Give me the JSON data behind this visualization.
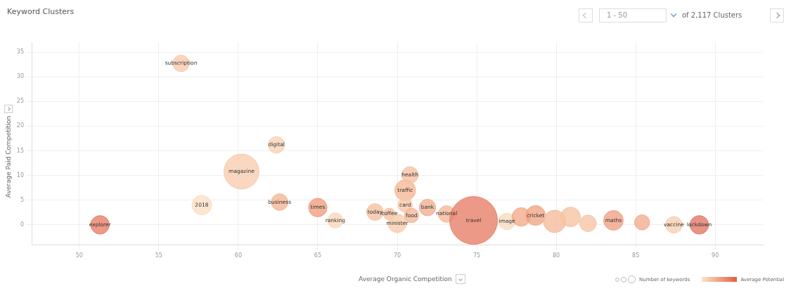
{
  "chart_data": {
    "type": "bubble",
    "title": "Keyword Clusters",
    "xlabel": "Average Organic Competition",
    "ylabel": "Average Paid Competition",
    "clabel": "Average Potential",
    "x": [
      51.3,
      56.4,
      57.7,
      60.2,
      62.4,
      62.6,
      65.0,
      66.1,
      68.6,
      69.5,
      70.0,
      70.5,
      70.5,
      70.8,
      70.9,
      71.9,
      73.1,
      74.8,
      76.9,
      77.8,
      78.7,
      79.9,
      80.9,
      82.0,
      83.6,
      85.4,
      87.4,
      89.0
    ],
    "values": [
      0,
      32.7,
      4.0,
      10.8,
      16.2,
      4.6,
      3.5,
      0.9,
      2.6,
      2.2,
      0.3,
      7.0,
      4.0,
      10.1,
      1.9,
      3.5,
      2.2,
      0.9,
      0.7,
      1.6,
      1.9,
      0.7,
      1.6,
      0.3,
      0.9,
      0.5,
      0,
      0
    ],
    "sizes": [
      0.15,
      0.12,
      0.17,
      0.54,
      0.12,
      0.12,
      0.15,
      0.1,
      0.12,
      0.06,
      0.15,
      0.19,
      0.09,
      0.12,
      0.09,
      0.12,
      0.12,
      1,
      0.12,
      0.15,
      0.17,
      0.22,
      0.17,
      0.12,
      0.17,
      0.1,
      0.12,
      0.15
    ],
    "colors": [
      "#e8806a",
      "#f9cbac",
      "#fbe0c6",
      "#f9cdb0",
      "#f9d3b6",
      "#f5b693",
      "#f0a080",
      "#f9d8bc",
      "#f5c0a0",
      "#f5c0a0",
      "#f7cdae",
      "#f5b896",
      "#f7c8a8",
      "#f6c2a2",
      "#f4b898",
      "#f2b092",
      "#f4ba9a",
      "#e8806a",
      "#f9dcc0",
      "#f2ad8c",
      "#f0a686",
      "#f4bc9c",
      "#f5c4a4",
      "#f6c6a6",
      "#f0a284",
      "#f2ae90",
      "#f7cfb2",
      "#e27868"
    ],
    "xlim": [
      47,
      93
    ],
    "xticks": [
      50,
      55,
      60,
      65,
      70,
      75,
      80,
      85,
      90
    ],
    "ylim": [
      -4,
      37
    ],
    "yticks": [
      0,
      5,
      10,
      15,
      20,
      25,
      30,
      35
    ],
    "grid": true,
    "annotations": [
      "1 - 50",
      "of 2,117 Clusters",
      "Number of keywords",
      {
        "text": "explorer",
        "x": 51.3,
        "y": 0
      },
      {
        "text": "subscription",
        "x": 56.4,
        "y": 32.7
      },
      {
        "text": "2018",
        "x": 57.7,
        "y": 4.0
      },
      {
        "text": "magazine",
        "x": 60.2,
        "y": 10.8
      },
      {
        "text": "digital",
        "x": 62.4,
        "y": 16.2
      },
      {
        "text": "business",
        "x": 62.6,
        "y": 4.6
      },
      {
        "text": "times",
        "x": 65.0,
        "y": 3.5
      },
      {
        "text": "ranking",
        "x": 66.1,
        "y": 0.9
      },
      {
        "text": "today",
        "x": 68.6,
        "y": 2.6
      },
      {
        "text": "coffee",
        "x": 69.5,
        "y": 2.2
      },
      {
        "text": "minister",
        "x": 70.0,
        "y": 0.3
      },
      {
        "text": "traffic",
        "x": 70.5,
        "y": 7.0
      },
      {
        "text": "card",
        "x": 70.5,
        "y": 4.0
      },
      {
        "text": "health",
        "x": 70.8,
        "y": 10.1
      },
      {
        "text": "food",
        "x": 70.9,
        "y": 1.9
      },
      {
        "text": "bank",
        "x": 71.9,
        "y": 3.5
      },
      {
        "text": "national",
        "x": 73.1,
        "y": 2.2
      },
      {
        "text": "travel",
        "x": 74.8,
        "y": 0.9
      },
      {
        "text": "image",
        "x": 76.9,
        "y": 0.7
      },
      {
        "text": "cricket",
        "x": 78.7,
        "y": 1.9
      },
      {
        "text": "maths",
        "x": 83.6,
        "y": 0.9
      },
      {
        "text": "vaccine",
        "x": 87.4,
        "y": 0
      },
      {
        "text": "lockdown",
        "x": 89.0,
        "y": 0
      }
    ]
  }
}
